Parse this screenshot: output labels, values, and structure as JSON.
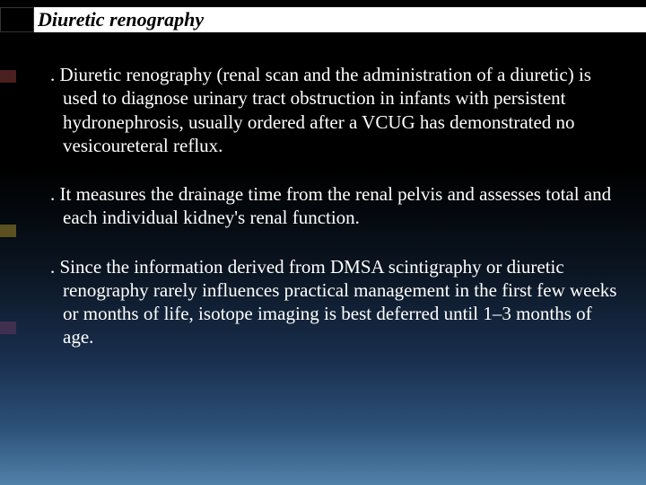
{
  "title": "Diuretic renography",
  "paragraphs": [
    ". Diuretic renography (renal scan and the administration of a diuretic) is used to diagnose urinary tract obstruction in infants with persistent hydronephrosis, usually ordered after a VCUG has demonstrated  no vesicoureteral reflux.",
    ". It measures the drainage time from the renal pelvis and assesses total and each individual kidney's renal function.",
    ". Since the information derived from DMSA scintigraphy or diuretic renography rarely influences practical management in the first few weeks or months of life, isotope imaging is best deferred until 1–3 months of age."
  ],
  "colors": {
    "text": "#ffffff",
    "title_bg": "#ffffff",
    "title_fg": "#000000",
    "bullet_accents": [
      "#4a2020",
      "#5a5020",
      "#403050"
    ]
  },
  "fontsize": {
    "title": 22,
    "body": 21
  }
}
